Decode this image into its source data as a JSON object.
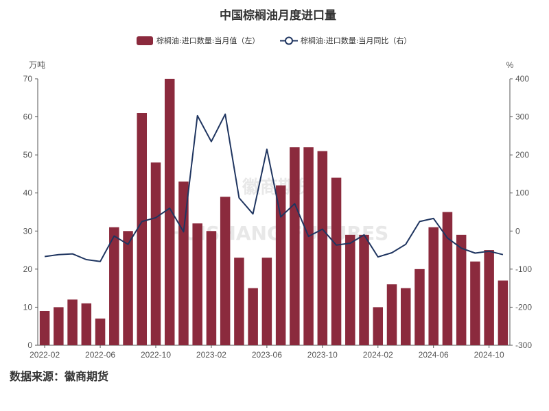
{
  "colors": {
    "bar": "#8b2a3d",
    "line": "#1f3560",
    "axis": "#555555",
    "text": "#333333",
    "watermark": "#e8e8e8"
  },
  "watermark": {
    "line1": "徽商期货",
    "line2": "HUISHANG FUTURES"
  },
  "source": "数据来源：徽商期货",
  "chart_data": {
    "type": "bar",
    "title": "中国棕榈油月度进口量",
    "y_left_unit": "万吨",
    "y_right_unit": "%",
    "ylim_left": [
      0,
      70
    ],
    "ylim_right": [
      -300,
      400
    ],
    "y_left_ticks": [
      0,
      10,
      20,
      30,
      40,
      50,
      60,
      70
    ],
    "y_right_ticks": [
      -300,
      -200,
      -100,
      0,
      100,
      200,
      300,
      400
    ],
    "x_tick_labels": [
      "2022-02",
      "2022-06",
      "2022-10",
      "2023-02",
      "2023-06",
      "2023-10",
      "2024-02",
      "2024-06",
      "2024-10"
    ],
    "grid": false,
    "legend_position": "top-center",
    "categories": [
      "2022-02",
      "2022-03",
      "2022-04",
      "2022-05",
      "2022-06",
      "2022-07",
      "2022-08",
      "2022-09",
      "2022-10",
      "2022-11",
      "2022-12",
      "2023-01",
      "2023-02",
      "2023-03",
      "2023-04",
      "2023-05",
      "2023-06",
      "2023-07",
      "2023-08",
      "2023-09",
      "2023-10",
      "2023-11",
      "2023-12",
      "2024-01",
      "2024-02",
      "2024-03",
      "2024-04",
      "2024-05",
      "2024-06",
      "2024-07",
      "2024-08",
      "2024-09",
      "2024-10",
      "2024-11"
    ],
    "series": [
      {
        "name": "棕榈油:进口数量:当月值（左）",
        "type": "bar",
        "axis": "left",
        "values": [
          9,
          10,
          12,
          11,
          7,
          31,
          30,
          61,
          48,
          70,
          43,
          32,
          30,
          39,
          23,
          15,
          23,
          42,
          52,
          52,
          51,
          44,
          29,
          29,
          10,
          16,
          15,
          20,
          31,
          35,
          29,
          22,
          25,
          17
        ]
      },
      {
        "name": "棕榈油:进口数量:当月同比（右）",
        "type": "line",
        "axis": "right",
        "values": [
          -67,
          -62,
          -60,
          -75,
          -80,
          -13,
          -35,
          25,
          35,
          60,
          -2,
          303,
          235,
          307,
          87,
          45,
          215,
          37,
          72,
          -14,
          5,
          -37,
          -32,
          -10,
          -68,
          -57,
          -35,
          25,
          33,
          -18,
          -45,
          -58,
          -53,
          -62
        ]
      }
    ]
  }
}
